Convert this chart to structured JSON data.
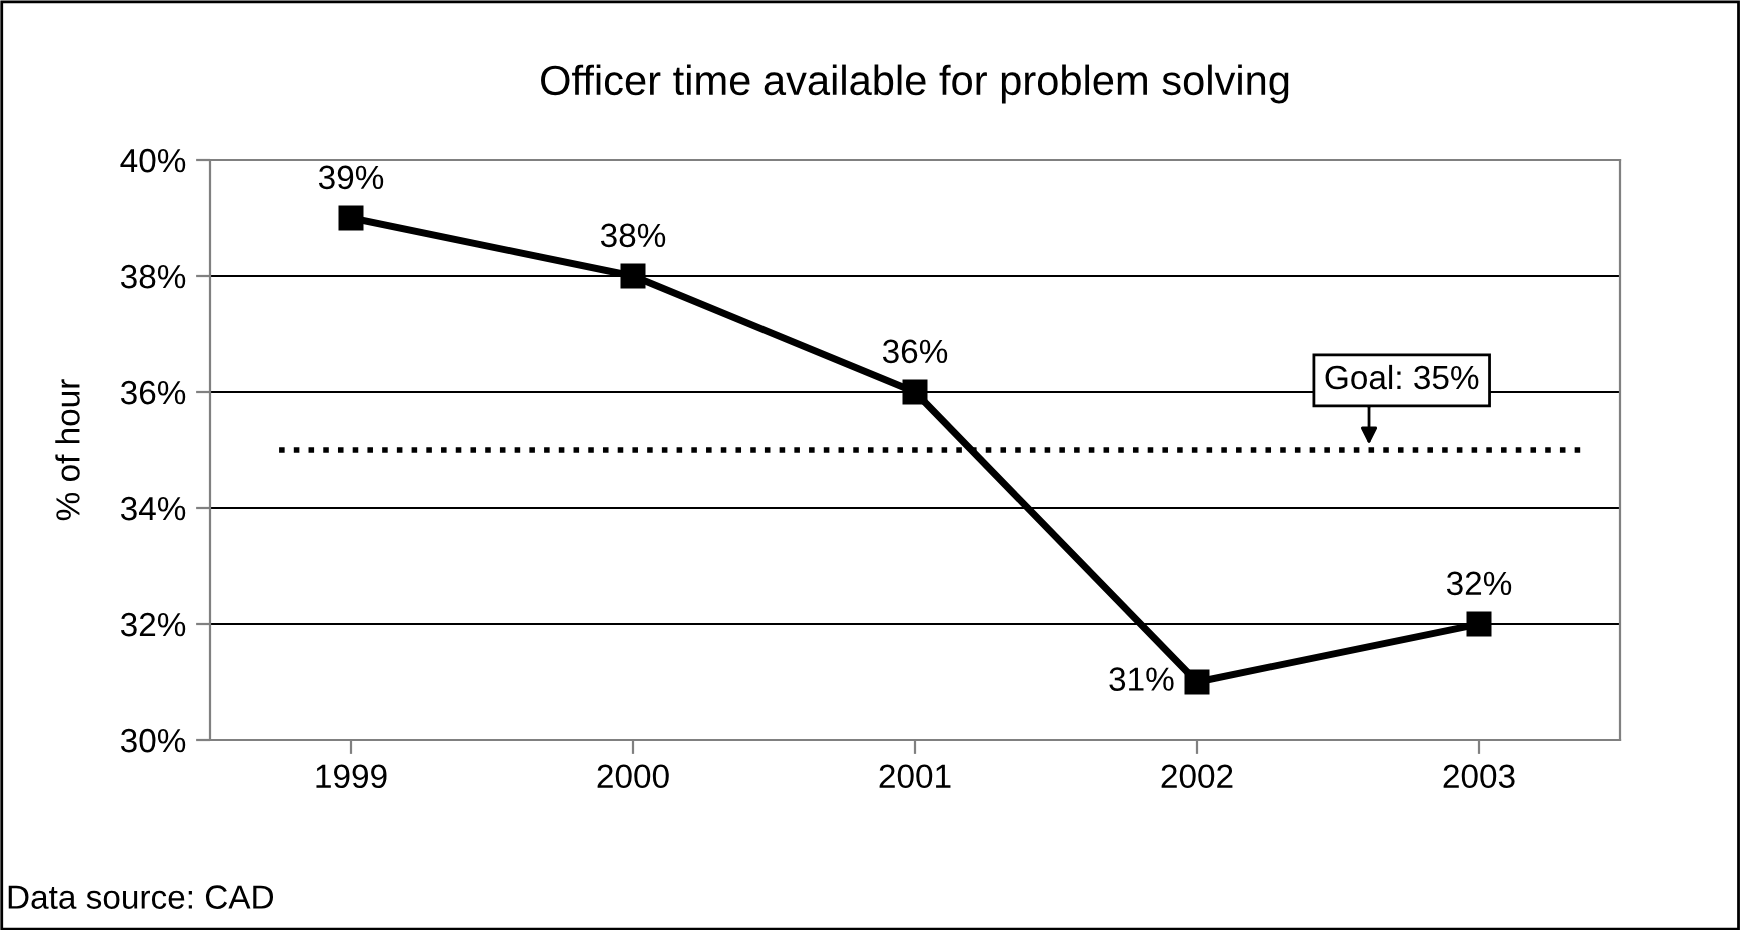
{
  "chart_data": {
    "type": "line",
    "title": "Officer time available for problem solving",
    "ylabel": "% of hour",
    "categories": [
      "1999",
      "2000",
      "2001",
      "2002",
      "2003"
    ],
    "series": [
      {
        "color": "#000000",
        "values": [
          39,
          38,
          36,
          31,
          32
        ],
        "value_labels": [
          "39%",
          "38%",
          "36%",
          "31%",
          "32%"
        ]
      }
    ],
    "ylim": [
      30,
      40
    ],
    "yticks": [
      {
        "value": 30,
        "label": "30%"
      },
      {
        "value": 32,
        "label": "32%"
      },
      {
        "value": 34,
        "label": "34%"
      },
      {
        "value": 36,
        "label": "36%"
      },
      {
        "value": 38,
        "label": "38%"
      },
      {
        "value": 40,
        "label": "40%"
      }
    ],
    "ref_lines": [
      {
        "axis": "y",
        "value": 35,
        "label": "Goal: 35%",
        "line_style": "dotted",
        "color": "#000000"
      }
    ],
    "annotations": [
      "Data source: CAD"
    ],
    "grid": "y",
    "legend": false,
    "marker": "square",
    "line_style": "solid"
  }
}
